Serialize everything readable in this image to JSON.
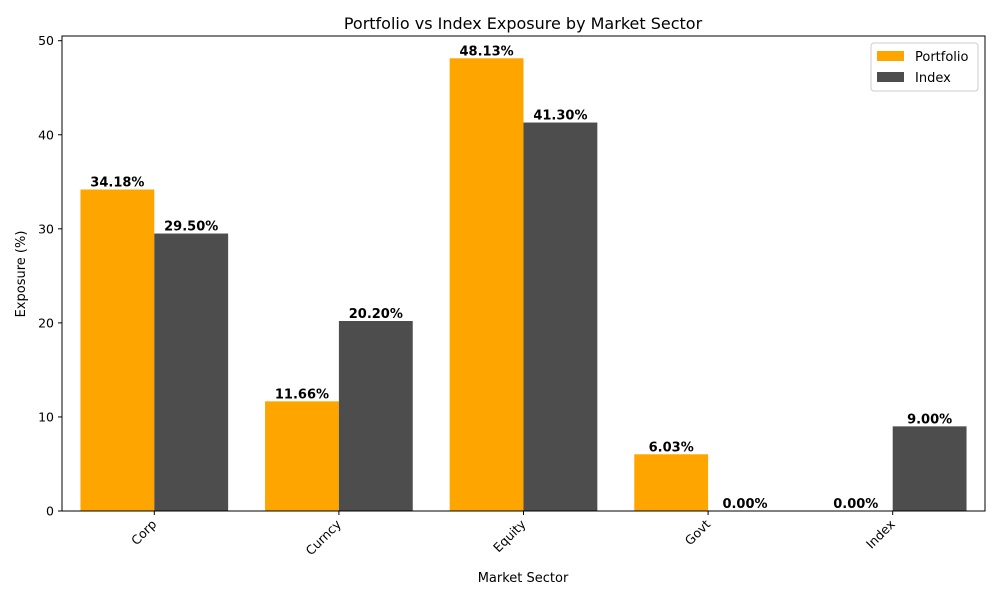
{
  "chart_data": {
    "type": "bar",
    "title": "Portfolio vs Index Exposure by Market Sector",
    "xlabel": "Market Sector",
    "ylabel": "Exposure (%)",
    "categories": [
      "Corp",
      "Curncy",
      "Equity",
      "Govt",
      "Index"
    ],
    "series": [
      {
        "name": "Portfolio",
        "color": "#FFA500",
        "values": [
          34.18,
          11.66,
          48.13,
          6.03,
          0.0
        ],
        "labels": [
          "34.18%",
          "11.66%",
          "48.13%",
          "6.03%",
          "0.00%"
        ]
      },
      {
        "name": "Index",
        "color": "#4D4D4D",
        "values": [
          29.5,
          20.2,
          41.3,
          0.0,
          9.0
        ],
        "labels": [
          "29.50%",
          "20.20%",
          "41.30%",
          "0.00%",
          "9.00%"
        ]
      }
    ],
    "ylim": [
      0,
      50.5
    ],
    "yticks": [
      0,
      10,
      20,
      30,
      40,
      50
    ],
    "ytick_labels": [
      "0",
      "10",
      "20",
      "30",
      "40",
      "50"
    ],
    "grid": false,
    "legend_position": "top-right"
  }
}
